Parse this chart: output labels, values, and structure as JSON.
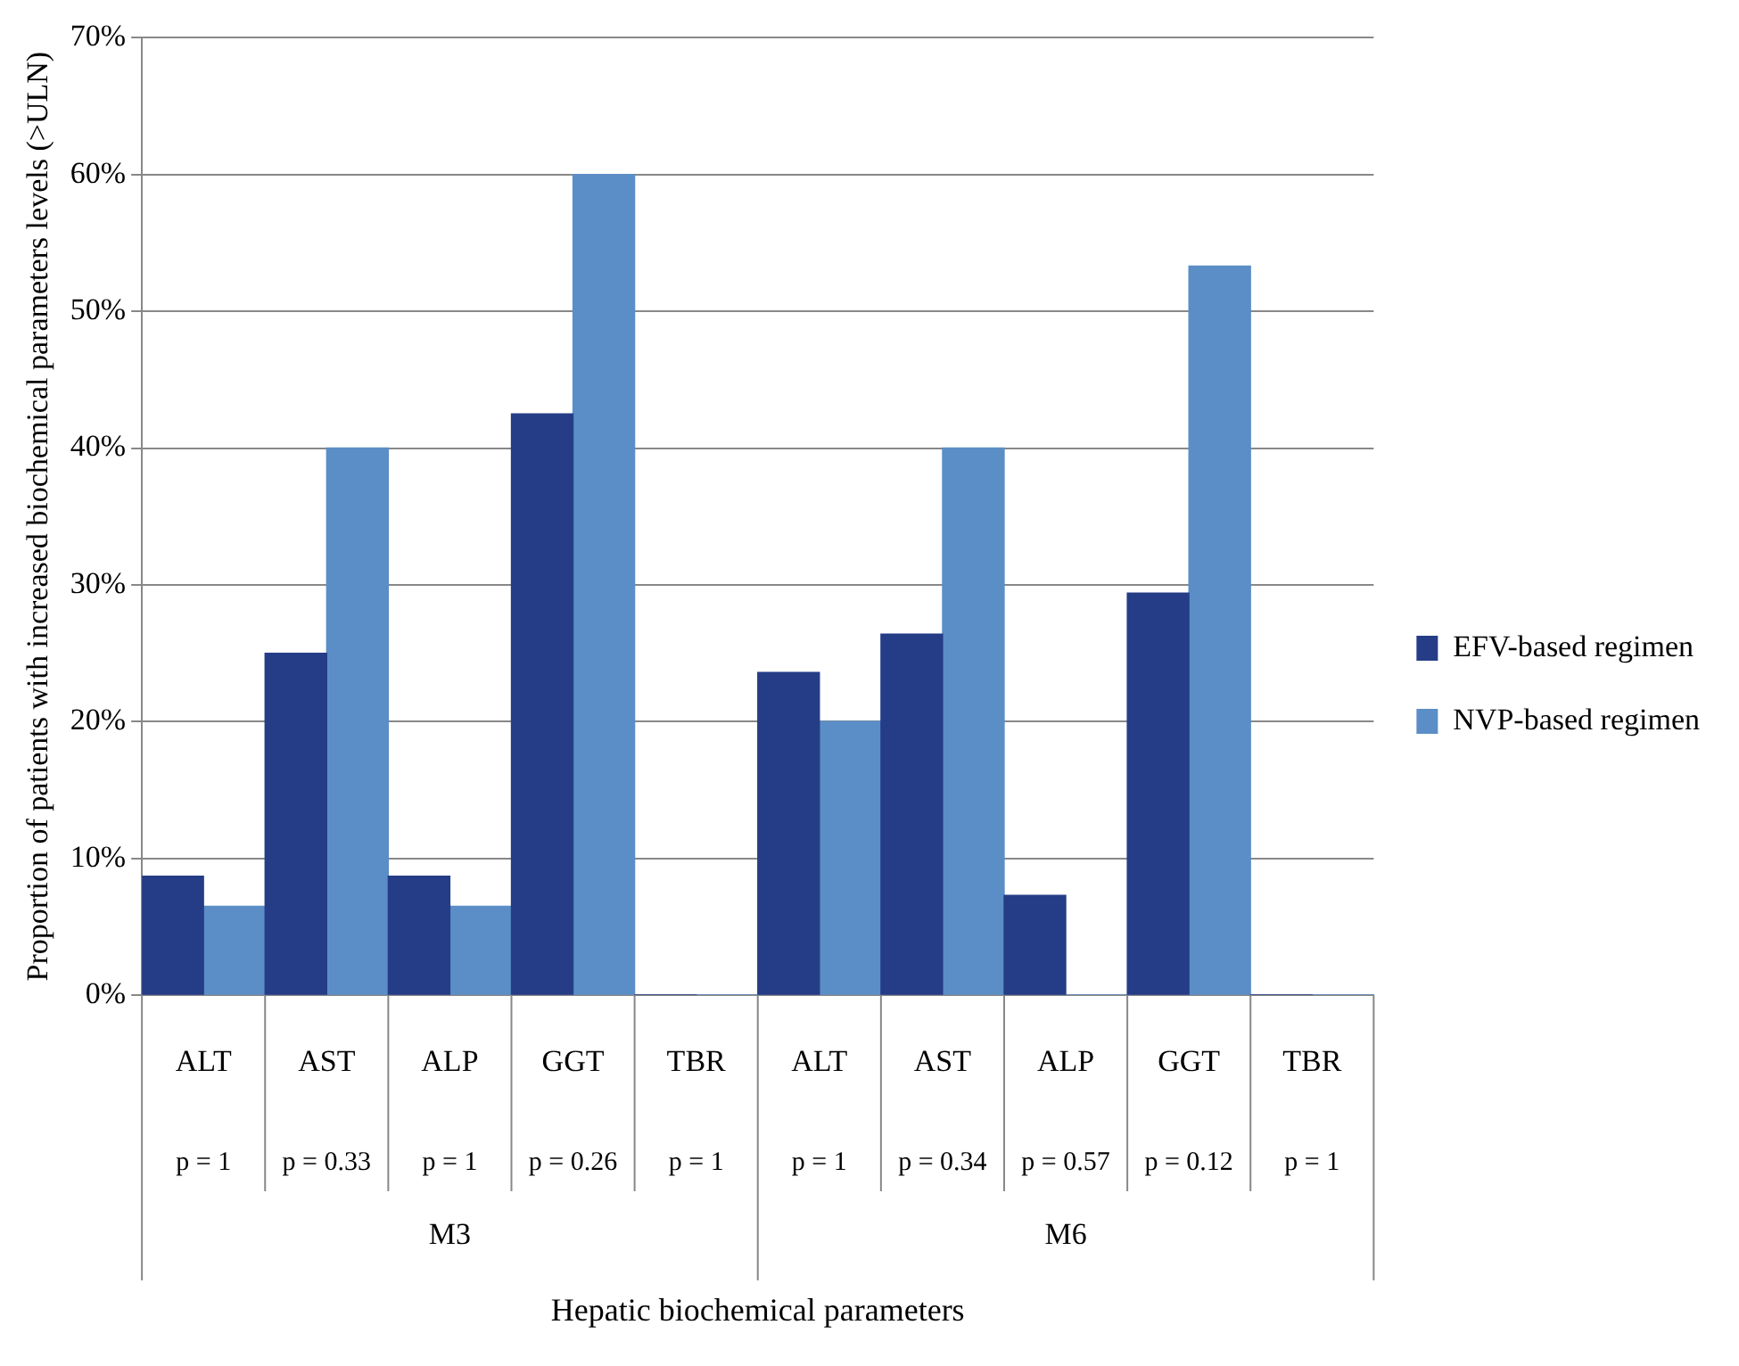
{
  "chart_data": {
    "type": "bar",
    "ylabel": "Proportion of patients with increased biochemical parameters levels (>ULN)",
    "categories": [
      "ALT",
      "AST",
      "ALP",
      "GGT",
      "TBR",
      "ALT",
      "AST",
      "ALP",
      "GGT",
      "TBR"
    ],
    "series": [
      {
        "name": "EFV-based regimen",
        "color": "#253d87",
        "values": [
          8.7,
          25,
          8.7,
          42.5,
          0,
          23.6,
          26.4,
          7.3,
          29.4,
          0
        ]
      },
      {
        "name": "NVP-based regimen",
        "color": "#5b8ec6",
        "values": [
          6.5,
          40,
          6.5,
          60,
          0,
          20,
          40,
          0,
          53.3,
          0
        ]
      }
    ],
    "annotations": [
      "p = 1",
      "p = 0.33",
      "p = 1",
      "p = 0.26",
      "p = 1",
      "p = 1",
      "p = 0.34",
      "p = 0.57",
      "p = 0.12",
      "p = 1",
      "M3",
      "M6",
      "Hepatic biochemical parameters"
    ],
    "ylim": [
      0,
      70
    ],
    "yticks": [
      {
        "value": 0,
        "label": "0%"
      },
      {
        "value": 10,
        "label": "10%"
      },
      {
        "value": 20,
        "label": "20%"
      },
      {
        "value": 30,
        "label": "30%"
      },
      {
        "value": 40,
        "label": "40%"
      },
      {
        "value": 50,
        "label": "50%"
      },
      {
        "value": 60,
        "label": "60%"
      },
      {
        "value": 70,
        "label": "70%"
      }
    ],
    "grid": "y",
    "legend": "right"
  }
}
